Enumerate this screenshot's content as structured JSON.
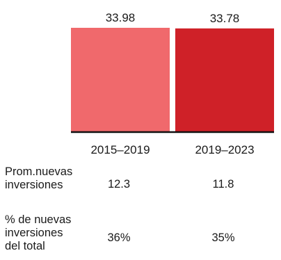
{
  "chart_data": {
    "type": "bar",
    "categories": [
      "2015–2019",
      "2019–2023"
    ],
    "values": [
      33.98,
      33.78
    ],
    "value_labels": [
      "33.98",
      "33.78"
    ],
    "colors": [
      "#f0696c",
      "#cf2128"
    ],
    "ylim": [
      0,
      33.98
    ],
    "grid": false
  },
  "table": {
    "rows": [
      {
        "label": "Prom.nuevas\ninversiones",
        "values": [
          "12.3",
          "11.8"
        ]
      },
      {
        "label": "% de nuevas\ninversiones\ndel total",
        "values": [
          "36%",
          "35%"
        ]
      }
    ]
  }
}
